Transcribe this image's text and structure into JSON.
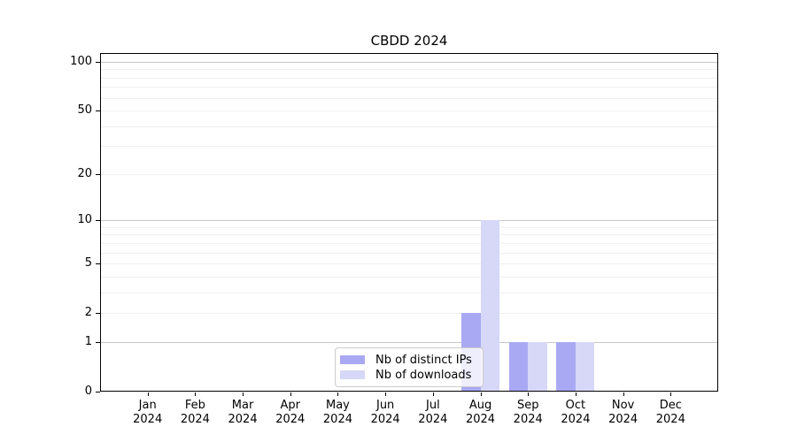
{
  "title": "CBDD 2024",
  "chart_data": {
    "type": "bar",
    "title": "CBDD 2024",
    "categories": [
      "Jan",
      "Feb",
      "Mar",
      "Apr",
      "May",
      "Jun",
      "Jul",
      "Aug",
      "Sep",
      "Oct",
      "Nov",
      "Dec"
    ],
    "year": "2024",
    "series": [
      {
        "name": "Nb of distinct IPs",
        "color": "#a9a9f3",
        "values": [
          0,
          0,
          0,
          0,
          0,
          0,
          0,
          2,
          1,
          1,
          0,
          0
        ]
      },
      {
        "name": "Nb of downloads",
        "color": "#d7d7f8",
        "values": [
          0,
          0,
          0,
          0,
          0,
          0,
          0,
          10,
          1,
          1,
          0,
          0
        ]
      }
    ],
    "yscale": "log1p",
    "ylim": [
      0,
      100
    ],
    "yticks": [
      0,
      1,
      2,
      5,
      10,
      20,
      50,
      100
    ],
    "major_gridlines": [
      1,
      10,
      100
    ],
    "minor_gridlines": [
      2,
      3,
      4,
      5,
      6,
      7,
      8,
      9,
      20,
      30,
      40,
      50,
      60,
      70,
      80,
      90
    ],
    "grid": true,
    "legend_position": "bottom-center-inside",
    "colors": {
      "axis": "#000000",
      "major_grid": "#c8c8c8",
      "minor_grid": "#f0f0f0",
      "legend_border": "#cccccc"
    }
  }
}
